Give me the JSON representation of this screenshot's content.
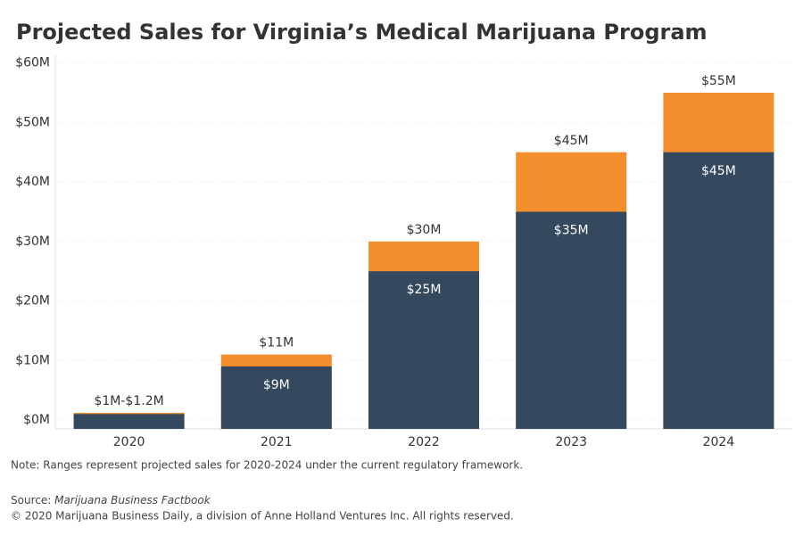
{
  "chart_data": {
    "type": "bar",
    "title": "Projected Sales for Virginia’s Medical Marijuana Program",
    "categories": [
      "2020",
      "2021",
      "2022",
      "2023",
      "2024"
    ],
    "series": [
      {
        "color": "#f28e2b",
        "values": [
          1.2,
          11,
          30,
          45,
          55
        ],
        "value_labels": [
          "$1M-$1.2M",
          "$11M",
          "$30M",
          "$45M",
          "$55M"
        ]
      },
      {
        "color": "#35495e",
        "values": [
          1,
          9,
          25,
          35,
          45
        ],
        "value_labels": [
          null,
          "$9M",
          "$25M",
          "$35M",
          "$45M"
        ]
      }
    ],
    "ylim": [
      -1.5,
      61.3
    ],
    "yticks": [
      {
        "value": 0,
        "label": "$0M"
      },
      {
        "value": 10,
        "label": "$10M"
      },
      {
        "value": 20,
        "label": "$20M"
      },
      {
        "value": 30,
        "label": "$30M"
      },
      {
        "value": 40,
        "label": "$40M"
      },
      {
        "value": 50,
        "label": "$50M"
      },
      {
        "value": 60,
        "label": "$60M"
      }
    ],
    "grid": true,
    "note": "Note: Ranges represent projected sales for 2020-2024 under the current regulatory framework.",
    "source_label": "Source:",
    "source": "Marijuana Business Factbook",
    "copyright": "© 2020 Marijuana Business Daily, a division of Anne Holland Ventures Inc. All rights reserved."
  }
}
